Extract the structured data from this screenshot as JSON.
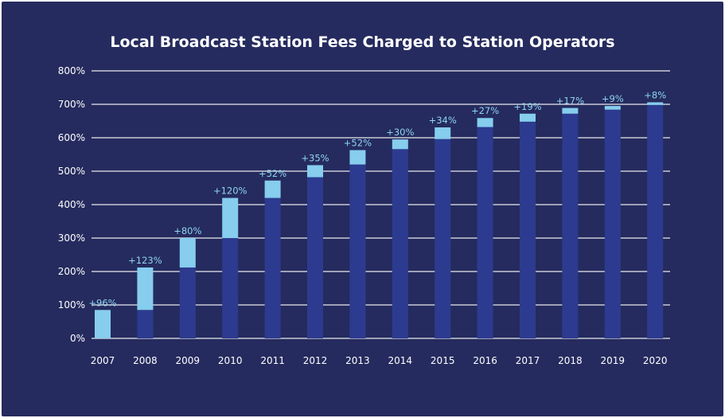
{
  "chart_data": {
    "type": "bar",
    "title": "Local Broadcast Station Fees Charged to Station Operators",
    "xlabel": "",
    "ylabel": "",
    "ylim": [
      0,
      800
    ],
    "y_ticks": [
      "0%",
      "100%",
      "200%",
      "300%",
      "400%",
      "500%",
      "600%",
      "700%",
      "800%"
    ],
    "grid": true,
    "categories": [
      "2007",
      "2008",
      "2009",
      "2010",
      "2011",
      "2012",
      "2013",
      "2014",
      "2015",
      "2016",
      "2017",
      "2018",
      "2019",
      "2020"
    ],
    "stacked": true,
    "series": [
      {
        "values": [
          0,
          85,
          212,
          300,
          420,
          482,
          520,
          566,
          596,
          632,
          648,
          672,
          684,
          698
        ]
      },
      {
        "values": [
          85,
          127,
          88,
          120,
          52,
          36,
          43,
          29,
          35,
          27,
          24,
          17,
          11,
          8
        ]
      }
    ],
    "data_labels": [
      "+96%",
      "+123%",
      "+80%",
      "+120%",
      "+52%",
      "+35%",
      "+52%",
      "+30%",
      "+34%",
      "+27%",
      "+19%",
      "+17%",
      "+9%",
      "+8%"
    ],
    "colors": {
      "background": "#252b5e",
      "base": "#2c3b8f",
      "increase": "#86cdee",
      "grid": "#ffffff",
      "text": "#ffffff",
      "label": "#8fd4f0"
    }
  }
}
